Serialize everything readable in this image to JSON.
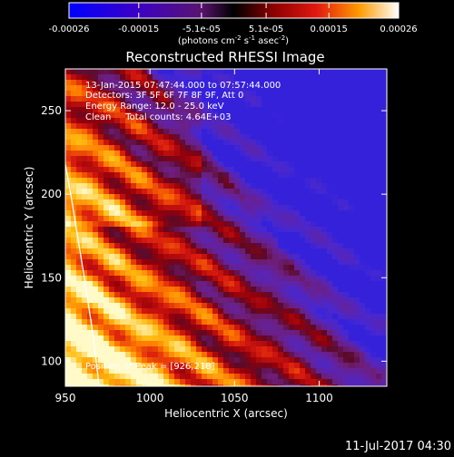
{
  "chart_data": {
    "type": "heatmap",
    "title": "Reconstructed RHESSI Image",
    "xlabel": "Heliocentric X (arcsec)",
    "ylabel": "Heliocentric Y (arcsec)",
    "xlim": [
      950,
      1140
    ],
    "ylim": [
      85,
      275
    ],
    "x_ticks": [
      950,
      1000,
      1050,
      1100
    ],
    "y_ticks": [
      100,
      150,
      200,
      250
    ],
    "colorbar": {
      "ticks": [
        "-0.00026",
        "-0.00015",
        "-5.1e-05",
        "5.1e-05",
        "0.00015",
        "0.00026"
      ],
      "tick_values": [
        -0.00026,
        -0.00015,
        -5.1e-05,
        5.1e-05,
        0.00015,
        0.00026
      ],
      "range": [
        -0.00026,
        0.00026
      ],
      "unit_label": "(photons cm",
      "unit_exp1": "-2",
      "unit_mid": " s",
      "unit_exp2": "-1",
      "unit_mid2": " asec",
      "unit_exp3": "-2",
      "unit_end": ")"
    },
    "annotations": {
      "time_range": "13-Jan-2015 07:47:44.000 to 07:57:44.000",
      "detectors": "Detectors: 3F 5F 6F 7F 8F 9F, Att 0",
      "energy": "Energy Range: 12.0 - 25.0 keV",
      "method": "Clean     Total counts: 4.64E+03",
      "peak": "Position of Peak = [926,218]"
    },
    "limb_line": {
      "x": [
        950,
        954,
        958,
        962,
        966,
        970
      ],
      "y": [
        218,
        195,
        170,
        145,
        118,
        85
      ]
    },
    "colors": {
      "background": "#000000",
      "negative_min": "#0000ff",
      "zero": "#000000",
      "mid": "#c0101a",
      "positive_high": "#ffa000",
      "positive_max": "#ffffff"
    }
  },
  "footer": {
    "date": "11-Jul-2017 04:30"
  }
}
